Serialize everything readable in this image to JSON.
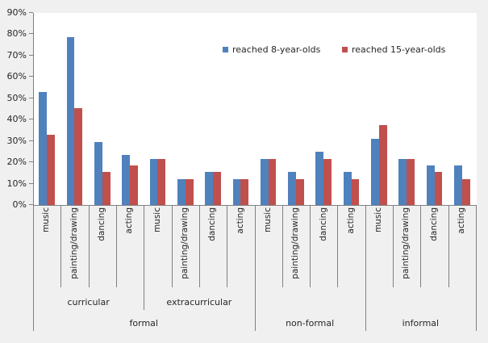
{
  "chart_data": {
    "type": "bar",
    "title": "",
    "grid": false,
    "legend_position": "top-right-inside",
    "ylim": [
      0,
      90
    ],
    "ytick_step": 10,
    "ytick_labels": [
      "0%",
      "10%",
      "20%",
      "30%",
      "40%",
      "50%",
      "60%",
      "70%",
      "80%",
      "90%"
    ],
    "categories": [
      "music",
      "painting/drawing",
      "dancing",
      "acting",
      "music",
      "painting/drawing",
      "dancing",
      "acting",
      "music",
      "painting/drawing",
      "dancing",
      "acting",
      "music",
      "painting/drawing",
      "dancing",
      "acting"
    ],
    "category_groups_mid": [
      {
        "label": "curricular",
        "start": 0,
        "end": 4
      },
      {
        "label": "extracurricular",
        "start": 4,
        "end": 8
      }
    ],
    "category_groups_outer": [
      {
        "label": "formal",
        "start": 0,
        "end": 8
      },
      {
        "label": "non-formal",
        "start": 8,
        "end": 12
      },
      {
        "label": "informal",
        "start": 12,
        "end": 16
      }
    ],
    "series": [
      {
        "name": "reached 8-year-olds",
        "color": "#4F81BD",
        "values": [
          53,
          78.5,
          29.5,
          23.5,
          21.5,
          12,
          15.5,
          12,
          21.5,
          15.5,
          25,
          15.5,
          31,
          21.5,
          18.5,
          18.5
        ]
      },
      {
        "name": "reached 15-year-olds",
        "color": "#C0504D",
        "values": [
          33,
          45.5,
          15.5,
          18.5,
          21.5,
          12,
          15.5,
          12,
          21.5,
          12,
          21.5,
          12,
          37.5,
          21.5,
          15.5,
          12
        ]
      }
    ],
    "colors": {
      "axis_line": "#808080",
      "text": "#262626",
      "plot_bg": "#FFFFFF",
      "page_bg": "#F0F0F0"
    }
  }
}
